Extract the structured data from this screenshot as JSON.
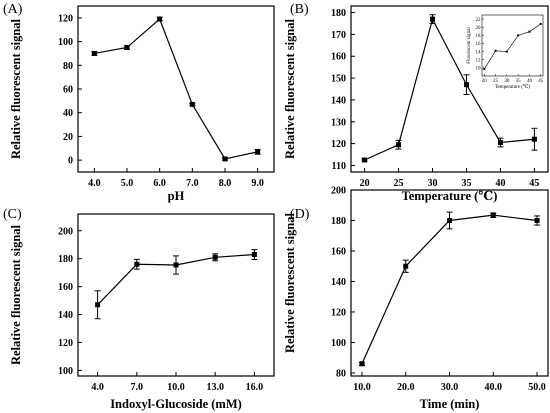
{
  "chart_data": [
    {
      "panel": "(A)",
      "type": "line",
      "xlabel": "pH",
      "ylabel": "Relative fluorescent signal",
      "x_ticks": [
        "4.0",
        "5.0",
        "6.0",
        "7.0",
        "8.0",
        "9.0"
      ],
      "y_ticks": [
        0,
        20,
        40,
        60,
        80,
        100,
        120
      ],
      "xlim": [
        3.5,
        9.5
      ],
      "ylim": [
        -10,
        130
      ],
      "grid": false,
      "series": [
        {
          "x": [
            4.0,
            5.0,
            6.0,
            7.0,
            8.0,
            9.0
          ],
          "values": [
            90,
            95,
            119,
            47,
            1,
            7
          ],
          "errors": [
            1.5,
            1.5,
            1.5,
            1,
            1,
            2
          ]
        }
      ]
    },
    {
      "panel": "(B)",
      "type": "line",
      "xlabel": "Temperature (℃)",
      "ylabel": "Relative fluorescent signal",
      "x_ticks": [
        "20",
        "25",
        "30",
        "35",
        "40",
        "45"
      ],
      "y_ticks": [
        110,
        120,
        130,
        140,
        150,
        160,
        170,
        180
      ],
      "xlim": [
        18,
        47
      ],
      "ylim": [
        107,
        183
      ],
      "grid": false,
      "series": [
        {
          "x": [
            20,
            25,
            30,
            35,
            40,
            45
          ],
          "values": [
            112.5,
            119.5,
            177,
            147,
            120.5,
            122
          ],
          "errors": [
            0.5,
            2,
            2,
            4.5,
            2,
            5
          ]
        }
      ],
      "inset": {
        "type": "line",
        "xlabel": "Temperature (℃)",
        "ylabel": "Fluorescent signal",
        "x_ticks": [
          "20",
          "25",
          "30",
          "35",
          "40",
          "45"
        ],
        "y_ticks": [
          "10",
          "12",
          "14",
          "16",
          "18",
          "20",
          "22"
        ],
        "xlim": [
          19,
          46
        ],
        "ylim": [
          8,
          23
        ],
        "x": [
          20,
          25,
          30,
          35,
          40,
          45
        ],
        "values": [
          9.7,
          14.2,
          14,
          18,
          18.9,
          20.8
        ]
      }
    },
    {
      "panel": "(C)",
      "type": "line",
      "xlabel": "Indoxyl-Glucoside (mM)",
      "ylabel": "Relative fluorescent signal",
      "x_ticks": [
        "4.0",
        "7.0",
        "10.0",
        "13.0",
        "16.0"
      ],
      "y_ticks": [
        100,
        120,
        140,
        160,
        180,
        200
      ],
      "xlim": [
        2.5,
        17.5
      ],
      "ylim": [
        96,
        212
      ],
      "grid": false,
      "series": [
        {
          "x": [
            4.0,
            7.0,
            10.0,
            13.0,
            16.0
          ],
          "values": [
            147,
            176,
            175.5,
            181,
            183
          ],
          "errors": [
            10,
            3.5,
            6.5,
            2.5,
            3.5
          ]
        }
      ]
    },
    {
      "panel": "(D)",
      "type": "line",
      "xlabel": "Time (min)",
      "ylabel": "Relative fluorescent signal",
      "x_ticks": [
        "10.0",
        "20.0",
        "30.0",
        "40.0",
        "50.0"
      ],
      "y_ticks": [
        80,
        100,
        120,
        140,
        160,
        180,
        200
      ],
      "xlim": [
        7.5,
        52.5
      ],
      "ylim": [
        78,
        200
      ],
      "grid": false,
      "series": [
        {
          "x": [
            10.0,
            20.0,
            30.0,
            40.0,
            50.0
          ],
          "values": [
            86,
            150,
            180,
            183.5,
            180
          ],
          "errors": [
            1,
            4,
            5.5,
            1.5,
            3
          ]
        }
      ]
    }
  ]
}
